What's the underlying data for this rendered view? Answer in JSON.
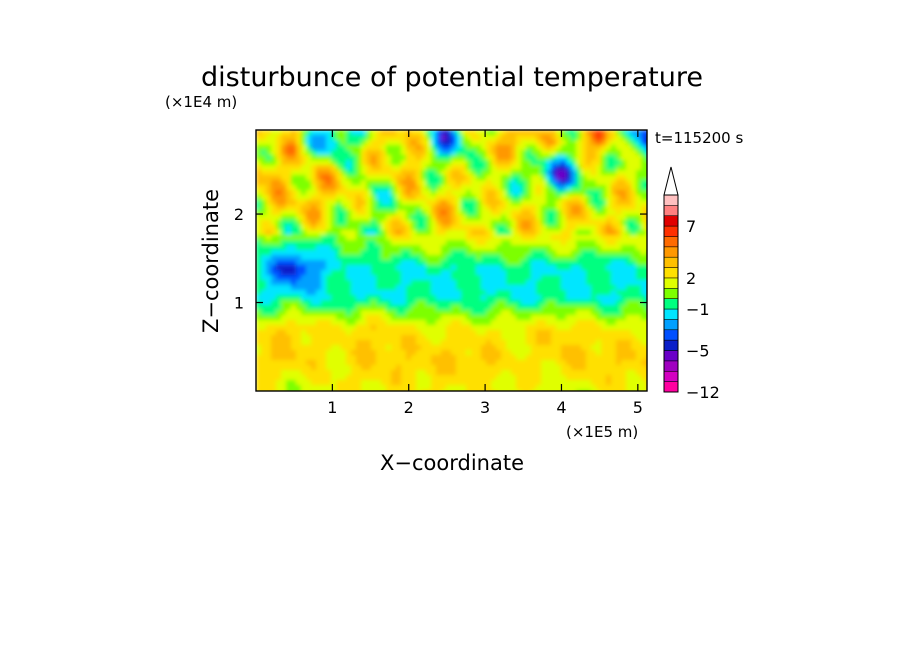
{
  "chart_data": {
    "type": "heatmap",
    "title": "disturbunce of potential temperature",
    "time_label": "t=115200 s",
    "xlabel": "X−coordinate",
    "ylabel": "Z−coordinate",
    "x_unit": "(×1E5 m)",
    "y_unit": "(×1E4 m)",
    "xlim": [
      0,
      5.12
    ],
    "ylim": [
      0,
      2.95
    ],
    "x_ticks": [
      1,
      2,
      3,
      4,
      5
    ],
    "x_tick_labels": [
      "1",
      "2",
      "3",
      "4",
      "5"
    ],
    "y_ticks": [
      1,
      2
    ],
    "y_tick_labels": [
      "1",
      "2"
    ],
    "colorbar": {
      "levels": [
        -12,
        -11,
        -9,
        -7,
        -5,
        -4,
        -3,
        -2,
        -1,
        0,
        1,
        2,
        3,
        4,
        5,
        6,
        7,
        8,
        9,
        10
      ],
      "labeled_levels": [
        {
          "value": 7,
          "label": "7"
        },
        {
          "value": 2,
          "label": "2"
        },
        {
          "value": -1,
          "label": "−1"
        },
        {
          "value": -5,
          "label": "−5"
        },
        {
          "value": -12,
          "label": "−12"
        }
      ],
      "colors": [
        "#ff00a0",
        "#d400c0",
        "#a000c0",
        "#6a00c8",
        "#0a1ec8",
        "#0050ff",
        "#00a0ff",
        "#00e6ff",
        "#00ff80",
        "#7dff00",
        "#e0ff00",
        "#ffe000",
        "#ffc000",
        "#ff9800",
        "#ff6a00",
        "#ff3000",
        "#e00000",
        "#ff8080",
        "#ffc0c0"
      ],
      "extend": "max"
    },
    "field_rows_z": [
      2.8,
      2.45,
      2.1,
      1.75,
      1.4,
      1.05,
      0.7,
      0.35,
      0.0
    ],
    "field_cols_x": [
      0.0,
      0.5,
      1.0,
      1.5,
      2.0,
      2.5,
      3.0,
      3.5,
      4.0,
      4.5,
      5.0
    ],
    "field_values": [
      [
        1,
        3,
        -3,
        2,
        3,
        -3,
        2,
        4,
        1,
        5,
        -3
      ],
      [
        4,
        2,
        3,
        1,
        3,
        1,
        2,
        0,
        -4,
        1,
        2
      ],
      [
        2,
        3,
        3,
        0,
        1,
        3,
        1,
        2,
        2,
        2,
        2
      ],
      [
        0,
        1,
        0,
        1,
        2,
        2,
        2,
        2,
        2,
        2,
        2
      ],
      [
        -1,
        -5,
        -1,
        -1,
        -1,
        -1,
        -1,
        -1,
        -1,
        -1,
        -1
      ],
      [
        -1,
        -1,
        -1,
        -1,
        -1,
        -1,
        -1,
        -1,
        -1,
        -1,
        -1
      ],
      [
        2,
        3,
        2,
        3,
        2,
        2,
        2,
        2,
        3,
        2,
        2
      ],
      [
        3,
        3,
        2,
        3,
        3,
        3,
        3,
        2,
        3,
        3,
        3
      ],
      [
        2,
        1,
        2,
        2,
        2,
        2,
        2,
        2,
        1,
        2,
        2
      ]
    ]
  }
}
